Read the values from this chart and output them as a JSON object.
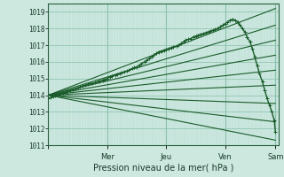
{
  "xlabel": "Pression niveau de la mer( hPa )",
  "bg_color": "#cce8df",
  "grid_color_minor": "#b0d8cc",
  "grid_color_major": "#88c0aa",
  "line_color": "#1a5c2a",
  "ylim": [
    1011.0,
    1019.5
  ],
  "yticks": [
    1011,
    1012,
    1013,
    1014,
    1015,
    1016,
    1017,
    1018,
    1019
  ],
  "xlim": [
    0.0,
    3.9
  ],
  "x_day_positions": [
    0.0,
    1.0,
    2.0,
    3.0,
    3.85
  ],
  "x_day_labels": [
    "",
    "Mer",
    "Jeu",
    "Ven",
    "Sam"
  ],
  "obs_x": [
    0.0,
    0.04,
    0.08,
    0.12,
    0.17,
    0.21,
    0.25,
    0.29,
    0.33,
    0.37,
    0.42,
    0.46,
    0.5,
    0.54,
    0.58,
    0.63,
    0.67,
    0.71,
    0.75,
    0.79,
    0.83,
    0.87,
    0.92,
    0.96,
    1.0,
    1.04,
    1.08,
    1.13,
    1.17,
    1.21,
    1.25,
    1.29,
    1.33,
    1.37,
    1.42,
    1.46,
    1.5,
    1.54,
    1.58,
    1.63,
    1.67,
    1.71,
    1.75,
    1.79,
    1.83,
    1.87,
    1.92,
    1.96,
    2.0,
    2.04,
    2.08,
    2.12,
    2.17,
    2.21,
    2.25,
    2.29,
    2.33,
    2.37,
    2.42,
    2.46,
    2.5,
    2.54,
    2.58,
    2.63,
    2.67,
    2.71,
    2.75,
    2.79,
    2.83,
    2.87,
    2.92,
    2.96,
    3.0,
    3.04,
    3.08,
    3.12,
    3.17,
    3.21,
    3.25,
    3.29,
    3.33,
    3.37,
    3.42,
    3.46,
    3.5,
    3.54,
    3.58,
    3.63,
    3.67,
    3.71,
    3.75,
    3.79,
    3.83,
    3.85
  ],
  "obs_y": [
    1013.8,
    1013.85,
    1013.9,
    1014.0,
    1014.05,
    1014.1,
    1014.15,
    1014.2,
    1014.25,
    1014.3,
    1014.35,
    1014.4,
    1014.45,
    1014.5,
    1014.55,
    1014.6,
    1014.65,
    1014.7,
    1014.7,
    1014.75,
    1014.8,
    1014.85,
    1014.9,
    1014.95,
    1015.0,
    1015.1,
    1015.15,
    1015.2,
    1015.25,
    1015.3,
    1015.35,
    1015.4,
    1015.45,
    1015.5,
    1015.6,
    1015.65,
    1015.7,
    1015.8,
    1015.9,
    1016.0,
    1016.1,
    1016.2,
    1016.3,
    1016.4,
    1016.5,
    1016.6,
    1016.65,
    1016.7,
    1016.75,
    1016.8,
    1016.85,
    1016.9,
    1016.95,
    1017.0,
    1017.1,
    1017.2,
    1017.3,
    1017.35,
    1017.4,
    1017.5,
    1017.55,
    1017.6,
    1017.65,
    1017.7,
    1017.75,
    1017.8,
    1017.85,
    1017.9,
    1017.95,
    1018.0,
    1018.1,
    1018.2,
    1018.3,
    1018.4,
    1018.5,
    1018.55,
    1018.5,
    1018.4,
    1018.2,
    1018.0,
    1017.8,
    1017.5,
    1017.2,
    1016.8,
    1016.3,
    1015.8,
    1015.3,
    1014.8,
    1014.3,
    1013.8,
    1013.4,
    1013.0,
    1012.5,
    1011.8
  ],
  "fan_lines": [
    {
      "x0": 0.0,
      "y0": 1014.0,
      "x1": 3.85,
      "y1": 1019.2
    },
    {
      "x0": 0.0,
      "y0": 1014.0,
      "x1": 3.85,
      "y1": 1018.2
    },
    {
      "x0": 0.0,
      "y0": 1014.0,
      "x1": 3.85,
      "y1": 1017.3
    },
    {
      "x0": 0.0,
      "y0": 1014.0,
      "x1": 3.85,
      "y1": 1016.4
    },
    {
      "x0": 0.0,
      "y0": 1014.0,
      "x1": 3.85,
      "y1": 1015.5
    },
    {
      "x0": 0.0,
      "y0": 1014.0,
      "x1": 3.85,
      "y1": 1014.6
    },
    {
      "x0": 0.0,
      "y0": 1014.0,
      "x1": 3.85,
      "y1": 1013.5
    },
    {
      "x0": 0.0,
      "y0": 1014.0,
      "x1": 3.85,
      "y1": 1012.4
    },
    {
      "x0": 0.0,
      "y0": 1014.0,
      "x1": 3.85,
      "y1": 1011.3
    }
  ],
  "xlabel_fontsize": 7,
  "tick_fontsize": 5.5,
  "xtick_fontsize": 6
}
